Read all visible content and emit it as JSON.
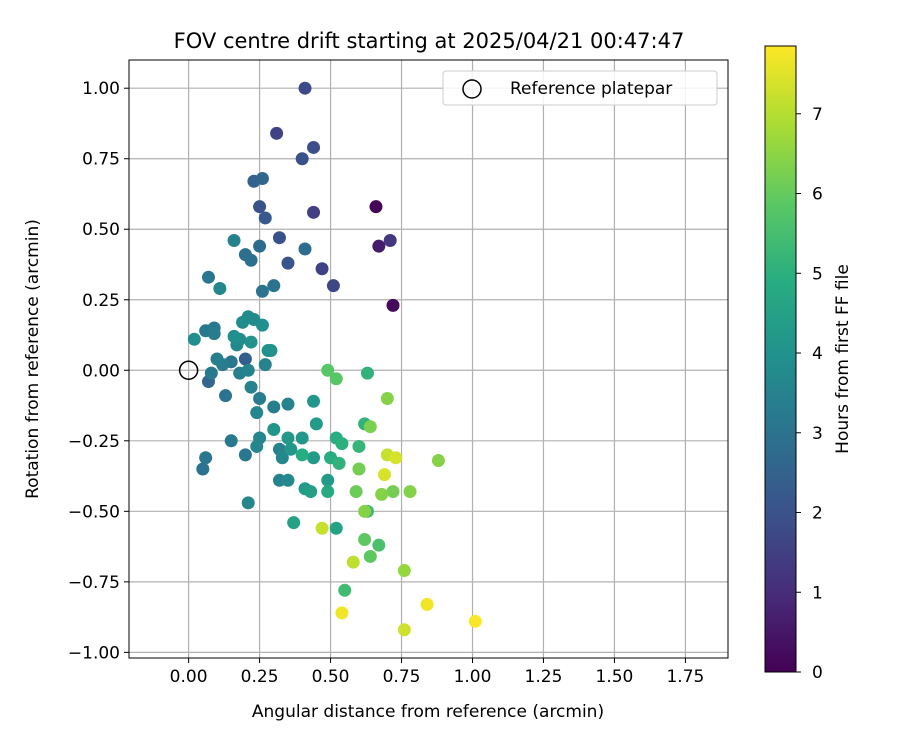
{
  "chart_data": {
    "type": "scatter",
    "title": "FOV centre drift starting at 2025/04/21 00:47:47",
    "xlabel": "Angular distance from reference (arcmin)",
    "ylabel": "Rotation from reference (arcmin)",
    "xlim": [
      -0.21,
      1.9
    ],
    "ylim": [
      -1.02,
      1.1
    ],
    "xticks": [
      "0.00",
      "0.25",
      "0.50",
      "0.75",
      "1.00",
      "1.25",
      "1.50",
      "1.75"
    ],
    "yticks": [
      "-1.00",
      "-0.75",
      "-0.50",
      "-0.25",
      "0.00",
      "0.25",
      "0.50",
      "0.75",
      "1.00"
    ],
    "grid": true,
    "legend": {
      "placement": "top-right",
      "entries": [
        "Reference platepar"
      ]
    },
    "reference_point": {
      "x": 0.0,
      "y": 0.0,
      "label": "Reference platepar",
      "marker": "open-circle"
    },
    "colorbar": {
      "label": "Hours from first FF file",
      "range": [
        0,
        7.85
      ],
      "ticks": [
        "0",
        "1",
        "2",
        "3",
        "4",
        "5",
        "6",
        "7"
      ],
      "colormap": "viridis"
    },
    "points": [
      {
        "x": 0.66,
        "y": 0.58,
        "h": 0.1
      },
      {
        "x": 0.72,
        "y": 0.23,
        "h": 0.2
      },
      {
        "x": 0.67,
        "y": 0.44,
        "h": 0.6
      },
      {
        "x": 0.71,
        "y": 0.46,
        "h": 1.3
      },
      {
        "x": 0.44,
        "y": 0.56,
        "h": 1.5
      },
      {
        "x": 0.31,
        "y": 0.84,
        "h": 1.6
      },
      {
        "x": 0.47,
        "y": 0.36,
        "h": 1.6
      },
      {
        "x": 0.51,
        "y": 0.3,
        "h": 1.7
      },
      {
        "x": 0.41,
        "y": 1.0,
        "h": 1.8
      },
      {
        "x": 0.44,
        "y": 0.79,
        "h": 1.9
      },
      {
        "x": 0.4,
        "y": 0.75,
        "h": 2.0
      },
      {
        "x": 0.32,
        "y": 0.47,
        "h": 2.0
      },
      {
        "x": 0.25,
        "y": 0.58,
        "h": 2.0
      },
      {
        "x": 0.35,
        "y": 0.38,
        "h": 2.1
      },
      {
        "x": 0.27,
        "y": 0.54,
        "h": 2.2
      },
      {
        "x": 0.23,
        "y": 0.67,
        "h": 2.5
      },
      {
        "x": 0.26,
        "y": 0.68,
        "h": 2.6
      },
      {
        "x": 0.2,
        "y": 0.04,
        "h": 2.4
      },
      {
        "x": 0.07,
        "y": -0.04,
        "h": 2.6
      },
      {
        "x": 0.41,
        "y": 0.43,
        "h": 2.8
      },
      {
        "x": 0.25,
        "y": 0.44,
        "h": 2.8
      },
      {
        "x": 0.2,
        "y": 0.41,
        "h": 2.9
      },
      {
        "x": 0.22,
        "y": 0.39,
        "h": 2.9
      },
      {
        "x": 0.26,
        "y": 0.28,
        "h": 3.0
      },
      {
        "x": 0.3,
        "y": 0.3,
        "h": 3.0
      },
      {
        "x": 0.07,
        "y": 0.33,
        "h": 3.1
      },
      {
        "x": 0.13,
        "y": -0.09,
        "h": 3.0
      },
      {
        "x": 0.05,
        "y": -0.35,
        "h": 3.0
      },
      {
        "x": 0.06,
        "y": -0.31,
        "h": 3.1
      },
      {
        "x": 0.15,
        "y": 0.03,
        "h": 3.1
      },
      {
        "x": 0.08,
        "y": -0.01,
        "h": 3.2
      },
      {
        "x": 0.2,
        "y": -0.3,
        "h": 3.1
      },
      {
        "x": 0.15,
        "y": -0.25,
        "h": 3.2
      },
      {
        "x": 0.06,
        "y": 0.14,
        "h": 3.2
      },
      {
        "x": 0.09,
        "y": 0.15,
        "h": 3.2
      },
      {
        "x": 0.09,
        "y": 0.13,
        "h": 3.3
      },
      {
        "x": 0.12,
        "y": 0.02,
        "h": 3.3
      },
      {
        "x": 0.1,
        "y": 0.04,
        "h": 3.4
      },
      {
        "x": 0.16,
        "y": 0.46,
        "h": 3.5
      },
      {
        "x": 0.11,
        "y": 0.29,
        "h": 3.6
      },
      {
        "x": 0.18,
        "y": -0.01,
        "h": 3.4
      },
      {
        "x": 0.21,
        "y": 0.0,
        "h": 3.5
      },
      {
        "x": 0.22,
        "y": -0.06,
        "h": 3.5
      },
      {
        "x": 0.25,
        "y": -0.1,
        "h": 3.3
      },
      {
        "x": 0.24,
        "y": -0.15,
        "h": 3.6
      },
      {
        "x": 0.25,
        "y": -0.24,
        "h": 3.6
      },
      {
        "x": 0.24,
        "y": -0.27,
        "h": 3.6
      },
      {
        "x": 0.27,
        "y": 0.02,
        "h": 3.5
      },
      {
        "x": 0.3,
        "y": -0.13,
        "h": 3.4
      },
      {
        "x": 0.35,
        "y": -0.12,
        "h": 3.5
      },
      {
        "x": 0.32,
        "y": -0.28,
        "h": 3.5
      },
      {
        "x": 0.33,
        "y": -0.31,
        "h": 3.6
      },
      {
        "x": 0.32,
        "y": -0.39,
        "h": 3.5
      },
      {
        "x": 0.35,
        "y": -0.39,
        "h": 3.7
      },
      {
        "x": 0.21,
        "y": -0.47,
        "h": 3.6
      },
      {
        "x": 0.17,
        "y": 0.09,
        "h": 3.7
      },
      {
        "x": 0.18,
        "y": 0.11,
        "h": 3.8
      },
      {
        "x": 0.19,
        "y": 0.17,
        "h": 3.8
      },
      {
        "x": 0.21,
        "y": 0.19,
        "h": 3.8
      },
      {
        "x": 0.23,
        "y": 0.18,
        "h": 3.8
      },
      {
        "x": 0.26,
        "y": 0.16,
        "h": 3.9
      },
      {
        "x": 0.02,
        "y": 0.11,
        "h": 3.9
      },
      {
        "x": 0.16,
        "y": 0.12,
        "h": 3.9
      },
      {
        "x": 0.22,
        "y": 0.1,
        "h": 4.0
      },
      {
        "x": 0.28,
        "y": 0.07,
        "h": 4.0
      },
      {
        "x": 0.29,
        "y": 0.07,
        "h": 4.0
      },
      {
        "x": 0.3,
        "y": -0.21,
        "h": 4.1
      },
      {
        "x": 0.35,
        "y": -0.24,
        "h": 4.2
      },
      {
        "x": 0.4,
        "y": -0.24,
        "h": 4.2
      },
      {
        "x": 0.44,
        "y": -0.11,
        "h": 4.2
      },
      {
        "x": 0.45,
        "y": -0.19,
        "h": 4.3
      },
      {
        "x": 0.36,
        "y": -0.28,
        "h": 4.2
      },
      {
        "x": 0.44,
        "y": -0.31,
        "h": 4.3
      },
      {
        "x": 0.49,
        "y": -0.39,
        "h": 4.3
      },
      {
        "x": 0.41,
        "y": -0.42,
        "h": 4.3
      },
      {
        "x": 0.43,
        "y": -0.43,
        "h": 4.4
      },
      {
        "x": 0.37,
        "y": -0.54,
        "h": 4.5
      },
      {
        "x": 0.52,
        "y": -0.56,
        "h": 4.6
      },
      {
        "x": 0.49,
        "y": -0.43,
        "h": 4.8
      },
      {
        "x": 0.5,
        "y": -0.31,
        "h": 4.9
      },
      {
        "x": 0.4,
        "y": -0.3,
        "h": 4.9
      },
      {
        "x": 0.52,
        "y": -0.24,
        "h": 4.9
      },
      {
        "x": 0.54,
        "y": -0.26,
        "h": 5.0
      },
      {
        "x": 0.53,
        "y": -0.33,
        "h": 5.1
      },
      {
        "x": 0.63,
        "y": -0.01,
        "h": 5.1
      },
      {
        "x": 0.62,
        "y": -0.19,
        "h": 5.1
      },
      {
        "x": 0.6,
        "y": -0.27,
        "h": 5.2
      },
      {
        "x": 0.63,
        "y": -0.5,
        "h": 5.3
      },
      {
        "x": 0.55,
        "y": -0.78,
        "h": 5.4
      },
      {
        "x": 0.67,
        "y": -0.62,
        "h": 5.6
      },
      {
        "x": 0.62,
        "y": -0.6,
        "h": 5.9
      },
      {
        "x": 0.64,
        "y": -0.66,
        "h": 5.9
      },
      {
        "x": 0.52,
        "y": -0.03,
        "h": 5.8
      },
      {
        "x": 0.49,
        "y": 0.0,
        "h": 5.8
      },
      {
        "x": 0.64,
        "y": -0.2,
        "h": 6.3
      },
      {
        "x": 0.6,
        "y": -0.35,
        "h": 6.2
      },
      {
        "x": 0.59,
        "y": -0.43,
        "h": 6.1
      },
      {
        "x": 0.62,
        "y": -0.5,
        "h": 6.4
      },
      {
        "x": 0.7,
        "y": -0.1,
        "h": 6.4
      },
      {
        "x": 0.72,
        "y": -0.43,
        "h": 6.2
      },
      {
        "x": 0.68,
        "y": -0.44,
        "h": 6.4
      },
      {
        "x": 0.78,
        "y": -0.43,
        "h": 6.4
      },
      {
        "x": 0.88,
        "y": -0.32,
        "h": 6.4
      },
      {
        "x": 0.76,
        "y": -0.71,
        "h": 6.6
      },
      {
        "x": 0.58,
        "y": -0.68,
        "h": 7.1
      },
      {
        "x": 0.47,
        "y": -0.56,
        "h": 7.2
      },
      {
        "x": 0.7,
        "y": -0.3,
        "h": 7.2
      },
      {
        "x": 0.73,
        "y": -0.31,
        "h": 7.4
      },
      {
        "x": 0.69,
        "y": -0.37,
        "h": 7.4
      },
      {
        "x": 0.76,
        "y": -0.92,
        "h": 7.3
      },
      {
        "x": 0.54,
        "y": -0.86,
        "h": 7.7
      },
      {
        "x": 0.84,
        "y": -0.83,
        "h": 7.7
      },
      {
        "x": 1.01,
        "y": -0.89,
        "h": 7.8
      }
    ]
  }
}
